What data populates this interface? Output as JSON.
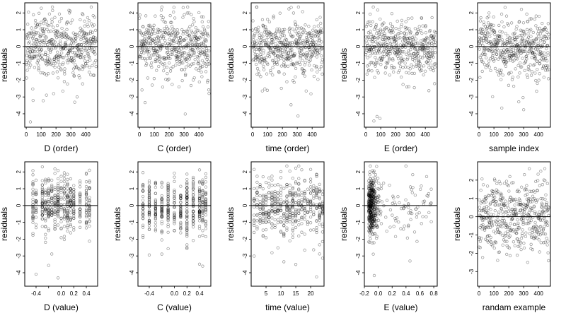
{
  "chart_data": [
    {
      "type": "scatter",
      "series_key": "resid_order",
      "seed": 11,
      "n": 470,
      "xlabel": "D (order)",
      "ylabel": "residuals",
      "xlim": [
        -10,
        480
      ],
      "ylim": [
        -4.8,
        2.6
      ],
      "xticks": [
        0,
        100,
        200,
        300,
        400
      ],
      "xtick_labels": [
        "0",
        "100",
        "200",
        "300",
        "400"
      ],
      "yticks": [
        -4,
        -3,
        -2,
        -1,
        0,
        1,
        2
      ],
      "ytick_labels": [
        "-4",
        "-3",
        "-2",
        "-1",
        "0",
        "1",
        "2"
      ],
      "hline": 0
    },
    {
      "type": "scatter",
      "series_key": "resid_order",
      "seed": 23,
      "n": 470,
      "xlabel": "C (order)",
      "ylabel": "residuals",
      "xlim": [
        -10,
        480
      ],
      "ylim": [
        -4.8,
        2.6
      ],
      "xticks": [
        0,
        100,
        200,
        300,
        400
      ],
      "xtick_labels": [
        "0",
        "100",
        "200",
        "300",
        "400"
      ],
      "yticks": [
        -4,
        -3,
        -2,
        -1,
        0,
        1,
        2
      ],
      "ytick_labels": [
        "-4",
        "-3",
        "-2",
        "-1",
        "0",
        "1",
        "2"
      ],
      "hline": 0
    },
    {
      "type": "scatter",
      "series_key": "resid_order",
      "seed": 37,
      "n": 470,
      "xlabel": "time (order)",
      "ylabel": "residuals",
      "xlim": [
        -10,
        480
      ],
      "ylim": [
        -4.8,
        2.6
      ],
      "xticks": [
        0,
        100,
        200,
        300,
        400
      ],
      "xtick_labels": [
        "0",
        "100",
        "200",
        "300",
        "400"
      ],
      "yticks": [
        -4,
        -3,
        -2,
        -1,
        0,
        1,
        2
      ],
      "ytick_labels": [
        "-4",
        "-3",
        "-2",
        "-1",
        "0",
        "1",
        "2"
      ],
      "hline": 0
    },
    {
      "type": "scatter",
      "series_key": "resid_order",
      "seed": 41,
      "n": 470,
      "xlabel": "E (order)",
      "ylabel": "residuals",
      "xlim": [
        -10,
        480
      ],
      "ylim": [
        -4.8,
        2.6
      ],
      "xticks": [
        0,
        100,
        200,
        300,
        400
      ],
      "xtick_labels": [
        "0",
        "100",
        "200",
        "300",
        "400"
      ],
      "yticks": [
        -4,
        -3,
        -2,
        -1,
        0,
        1,
        2
      ],
      "ytick_labels": [
        "-4",
        "-3",
        "-2",
        "-1",
        "0",
        "1",
        "2"
      ],
      "hline": 0
    },
    {
      "type": "scatter",
      "series_key": "resid_order",
      "seed": 53,
      "n": 470,
      "xlabel": "sample index",
      "ylabel": "residuals",
      "xlim": [
        -10,
        480
      ],
      "ylim": [
        -4.8,
        2.6
      ],
      "xticks": [
        0,
        100,
        200,
        300,
        400
      ],
      "xtick_labels": [
        "0",
        "100",
        "200",
        "300",
        "400"
      ],
      "yticks": [
        -4,
        -3,
        -2,
        -1,
        0,
        1,
        2
      ],
      "ytick_labels": [
        "-4",
        "-3",
        "-2",
        "-1",
        "0",
        "1",
        "2"
      ],
      "hline": 0
    },
    {
      "type": "scatter",
      "series_key": "resid_value_D",
      "seed": 61,
      "n": 470,
      "xlabel": "D (value)",
      "ylabel": "residuals",
      "xlim": [
        -0.58,
        0.58
      ],
      "ylim": [
        -4.8,
        2.6
      ],
      "xticks": [
        -0.4,
        -0.2,
        0.0,
        0.2,
        0.4
      ],
      "xtick_labels": [
        "-0.4",
        "",
        "0.0",
        "0.2",
        "0.4"
      ],
      "yticks": [
        -4,
        -3,
        -2,
        -1,
        0,
        1,
        2
      ],
      "ytick_labels": [
        "-4",
        "-3",
        "-2",
        "-1",
        "0",
        "1",
        "2"
      ],
      "x_levels": [
        -0.45,
        -0.4,
        -0.3,
        -0.25,
        -0.2,
        -0.15,
        -0.1,
        -0.05,
        0.0,
        0.05,
        0.1,
        0.15,
        0.2,
        0.3,
        0.4,
        0.45
      ],
      "hline": 0
    },
    {
      "type": "scatter",
      "series_key": "resid_value_C",
      "seed": 71,
      "n": 470,
      "xlabel": "C (value)",
      "ylabel": "residuals",
      "xlim": [
        -0.58,
        0.58
      ],
      "ylim": [
        -4.8,
        2.6
      ],
      "xticks": [
        -0.4,
        -0.2,
        0.0,
        0.2,
        0.4
      ],
      "xtick_labels": [
        "-0.4",
        "",
        "0.0",
        "0.2",
        "0.4"
      ],
      "yticks": [
        -4,
        -3,
        -2,
        -1,
        0,
        1,
        2
      ],
      "ytick_labels": [
        "-4",
        "-3",
        "-2",
        "-1",
        "0",
        "1",
        "2"
      ],
      "x_levels": [
        -0.5,
        -0.4,
        -0.3,
        -0.2,
        -0.1,
        0.0,
        0.1,
        0.2,
        0.3,
        0.4,
        0.45,
        0.5
      ],
      "hline": 0
    },
    {
      "type": "scatter",
      "series_key": "resid_value_time",
      "seed": 83,
      "n": 470,
      "xlabel": "time (value)",
      "ylabel": "residuals",
      "xlim": [
        0,
        24.5
      ],
      "ylim": [
        -4.8,
        2.6
      ],
      "xticks": [
        5,
        10,
        15,
        20
      ],
      "xtick_labels": [
        "5",
        "10",
        "15",
        "20"
      ],
      "yticks": [
        -4,
        -3,
        -2,
        -1,
        0,
        1,
        2
      ],
      "ytick_labels": [
        "-4",
        "-3",
        "-2",
        "-1",
        "0",
        "1",
        "2"
      ],
      "x_levels": [
        1,
        2,
        3,
        4,
        5,
        6,
        7,
        8,
        9,
        10,
        11,
        12,
        13,
        14,
        15,
        16,
        17,
        18,
        19,
        20,
        21,
        22,
        23,
        24
      ],
      "hline": 0
    },
    {
      "type": "scatter",
      "series_key": "resid_value_E",
      "seed": 97,
      "n": 470,
      "xlabel": "E (value)",
      "ylabel": "residuals",
      "xlim": [
        -0.2,
        0.85
      ],
      "ylim": [
        -4.8,
        2.6
      ],
      "xticks": [
        -0.2,
        0.0,
        0.2,
        0.4,
        0.6,
        0.8
      ],
      "xtick_labels": [
        "-0.2",
        "0.0",
        "0.2",
        "0.4",
        "0.6",
        "0.8"
      ],
      "yticks": [
        -4,
        -3,
        -2,
        -1,
        0,
        1,
        2
      ],
      "ytick_labels": [
        "-4",
        "-3",
        "-2",
        "-1",
        "0",
        "1",
        "2"
      ],
      "hline": 0
    },
    {
      "type": "scatter",
      "series_key": "random_example",
      "seed": 101,
      "n": 470,
      "xlabel": "randam example",
      "ylabel": "residuals",
      "xlim": [
        -10,
        480
      ],
      "ylim": [
        -3.8,
        3.0
      ],
      "xticks": [
        0,
        100,
        200,
        300,
        400
      ],
      "xtick_labels": [
        "0",
        "100",
        "200",
        "300",
        "400"
      ],
      "yticks": [
        -3,
        -2,
        -1,
        0,
        1,
        2
      ],
      "ytick_labels": [
        "-3",
        "-2",
        "-1",
        "0",
        "1",
        "2"
      ],
      "hline": 0
    }
  ]
}
